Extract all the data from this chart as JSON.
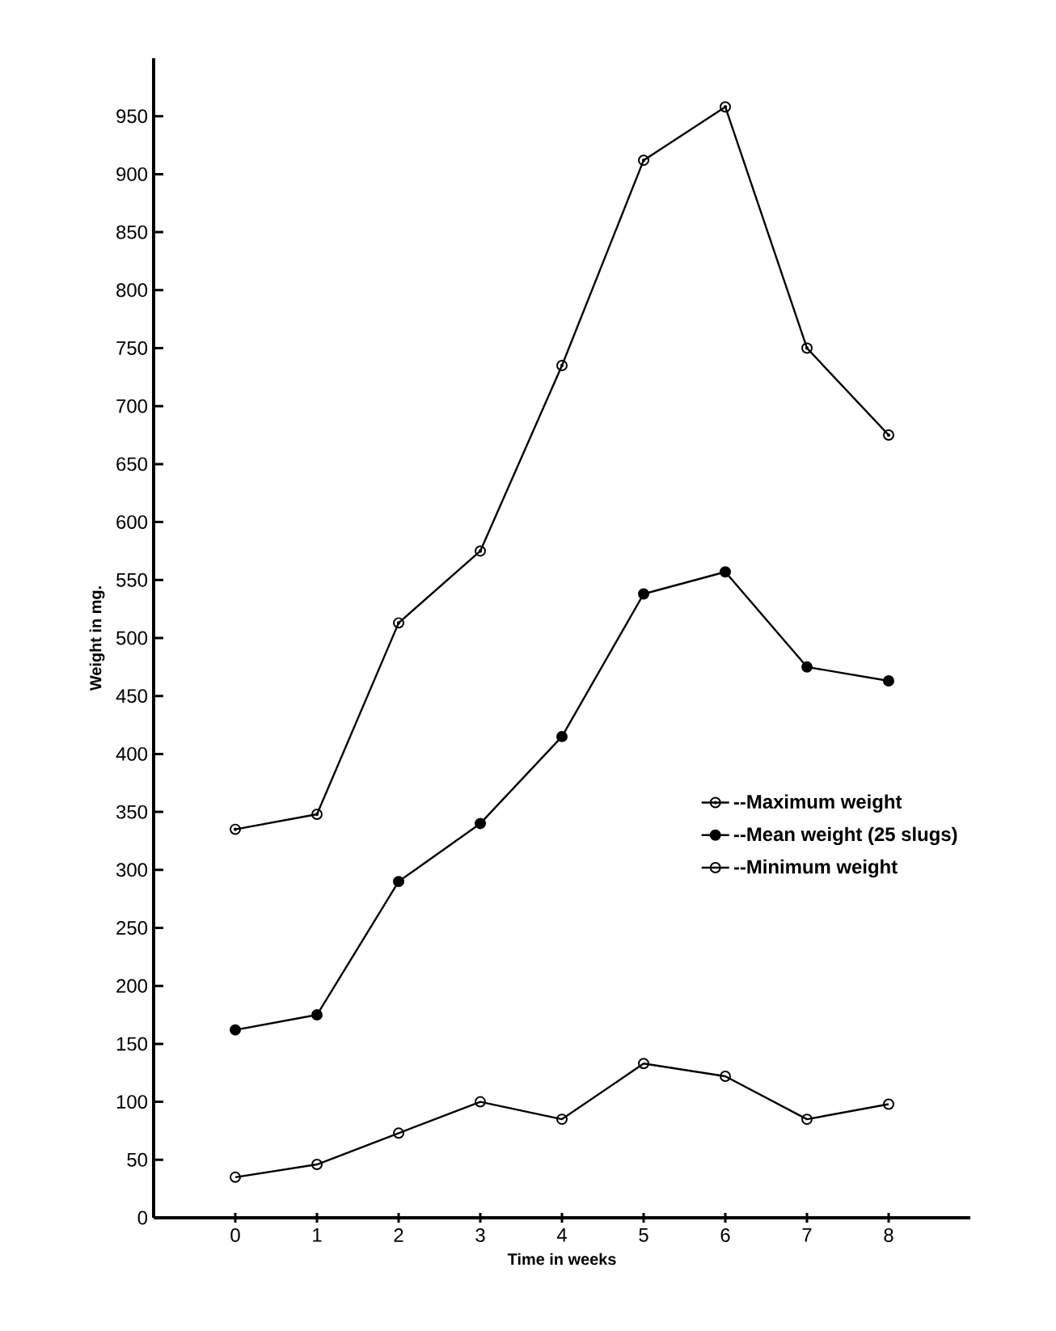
{
  "chart_data": {
    "type": "line",
    "xlabel": "Time in weeks",
    "ylabel": "Weight in mg.",
    "x": [
      0,
      1,
      2,
      3,
      4,
      5,
      6,
      7,
      8
    ],
    "series": [
      {
        "name": "--Maximum weight",
        "color": "#000000",
        "values": [
          335,
          348,
          513,
          575,
          735,
          912,
          958,
          750,
          675
        ]
      },
      {
        "name": "--Mean weight (25 slugs)",
        "color": "#000000",
        "values": [
          162,
          175,
          290,
          340,
          415,
          538,
          557,
          475,
          463
        ]
      },
      {
        "name": "--Minimum weight",
        "color": "#000000",
        "values": [
          35,
          46,
          73,
          100,
          85,
          133,
          122,
          85,
          98
        ]
      }
    ],
    "xlim": [
      -1,
      9
    ],
    "ylim": [
      0,
      1000
    ],
    "xticks": [
      0,
      1,
      2,
      3,
      4,
      5,
      6,
      7,
      8
    ],
    "yticks": [
      0,
      50,
      100,
      150,
      200,
      250,
      300,
      350,
      400,
      450,
      500,
      550,
      600,
      650,
      700,
      750,
      800,
      850,
      900,
      950
    ],
    "marker": "circle",
    "line_style": "solid",
    "grid": false,
    "legend": "right"
  }
}
